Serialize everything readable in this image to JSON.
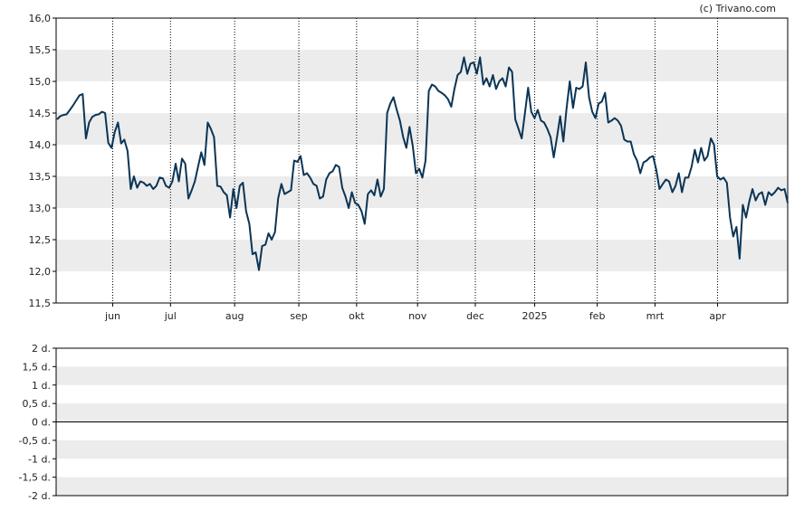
{
  "credit": "(c) Trivano.com",
  "colors": {
    "line": "#0b3556",
    "band": "#ececec",
    "grid": "#000000",
    "axis": "#000000",
    "text": "#222222"
  },
  "chart_data": [
    {
      "type": "line",
      "title": "",
      "xlabel": "",
      "ylabel": "",
      "ylim": [
        11.5,
        16.0
      ],
      "yticks": [
        "11,5",
        "12,0",
        "12,5",
        "13,0",
        "13,5",
        "14,0",
        "14,5",
        "15,0",
        "15,5",
        "16,0"
      ],
      "xticks": [
        "jun",
        "jul",
        "aug",
        "sep",
        "okt",
        "nov",
        "dec",
        "2025",
        "feb",
        "mrt",
        "apr"
      ],
      "grid": {
        "bands": "alternating",
        "vertical": "dotted"
      },
      "series": [
        {
          "values": [
            14.4,
            14.45,
            14.47,
            14.48,
            14.55,
            14.62,
            14.7,
            14.78,
            14.8,
            14.1,
            14.35,
            14.44,
            14.47,
            14.48,
            14.52,
            14.5,
            14.03,
            13.95,
            14.2,
            14.35,
            14.02,
            14.08,
            13.9,
            13.3,
            13.5,
            13.32,
            13.42,
            13.4,
            13.35,
            13.38,
            13.3,
            13.35,
            13.48,
            13.47,
            13.35,
            13.32,
            13.42,
            13.7,
            13.42,
            13.78,
            13.7,
            13.15,
            13.28,
            13.42,
            13.65,
            13.88,
            13.68,
            14.35,
            14.25,
            14.12,
            13.35,
            13.34,
            13.25,
            13.2,
            12.85,
            13.3,
            13.0,
            13.35,
            13.4,
            12.95,
            12.75,
            12.27,
            12.3,
            12.02,
            12.4,
            12.42,
            12.6,
            12.5,
            12.62,
            13.15,
            13.38,
            13.22,
            13.25,
            13.28,
            13.75,
            13.73,
            13.82,
            13.52,
            13.55,
            13.48,
            13.38,
            13.35,
            13.15,
            13.18,
            13.45,
            13.55,
            13.58,
            13.68,
            13.65,
            13.32,
            13.18,
            13.0,
            13.25,
            13.08,
            13.05,
            12.95,
            12.75,
            13.22,
            13.28,
            13.2,
            13.45,
            13.18,
            13.3,
            14.5,
            14.65,
            14.75,
            14.55,
            14.38,
            14.12,
            13.95,
            14.28,
            13.98,
            13.55,
            13.62,
            13.48,
            13.75,
            14.85,
            14.95,
            14.92,
            14.85,
            14.82,
            14.78,
            14.72,
            14.6,
            14.88,
            15.1,
            15.15,
            15.38,
            15.12,
            15.28,
            15.3,
            15.12,
            15.38,
            14.95,
            15.05,
            14.92,
            15.1,
            14.88,
            15.0,
            15.05,
            14.92,
            15.22,
            15.15,
            14.4,
            14.25,
            14.1,
            14.5,
            14.9,
            14.52,
            14.42,
            14.55,
            14.38,
            14.35,
            14.25,
            14.12,
            13.8,
            14.12,
            14.45,
            14.05,
            14.58,
            15.0,
            14.58,
            14.9,
            14.88,
            14.92,
            15.3,
            14.75,
            14.52,
            14.42,
            14.65,
            14.68,
            14.82,
            14.35,
            14.38,
            14.42,
            14.38,
            14.3,
            14.08,
            14.05,
            14.05,
            13.85,
            13.75,
            13.55,
            13.72,
            13.75,
            13.8,
            13.82,
            13.6,
            13.3,
            13.38,
            13.45,
            13.42,
            13.25,
            13.35,
            13.55,
            13.25,
            13.48,
            13.48,
            13.65,
            13.92,
            13.72,
            13.95,
            13.75,
            13.82,
            14.1,
            14.0,
            13.5,
            13.45,
            13.48,
            13.4,
            12.85,
            12.55,
            12.7,
            12.2,
            13.05,
            12.85,
            13.1,
            13.3,
            13.12,
            13.22,
            13.25,
            13.05,
            13.25,
            13.2,
            13.25,
            13.32,
            13.28,
            13.3,
            13.08
          ]
        }
      ]
    },
    {
      "type": "line",
      "title": "",
      "ylim": [
        -2,
        2
      ],
      "yticks": [
        "-2 d.",
        "-1,5 d.",
        "-1 d.",
        "-0,5 d.",
        "0 d.",
        "0,5 d.",
        "1 d.",
        "1,5 d.",
        "2 d."
      ],
      "grid": {
        "bands": "alternating",
        "zero_line": true
      },
      "series": []
    }
  ]
}
